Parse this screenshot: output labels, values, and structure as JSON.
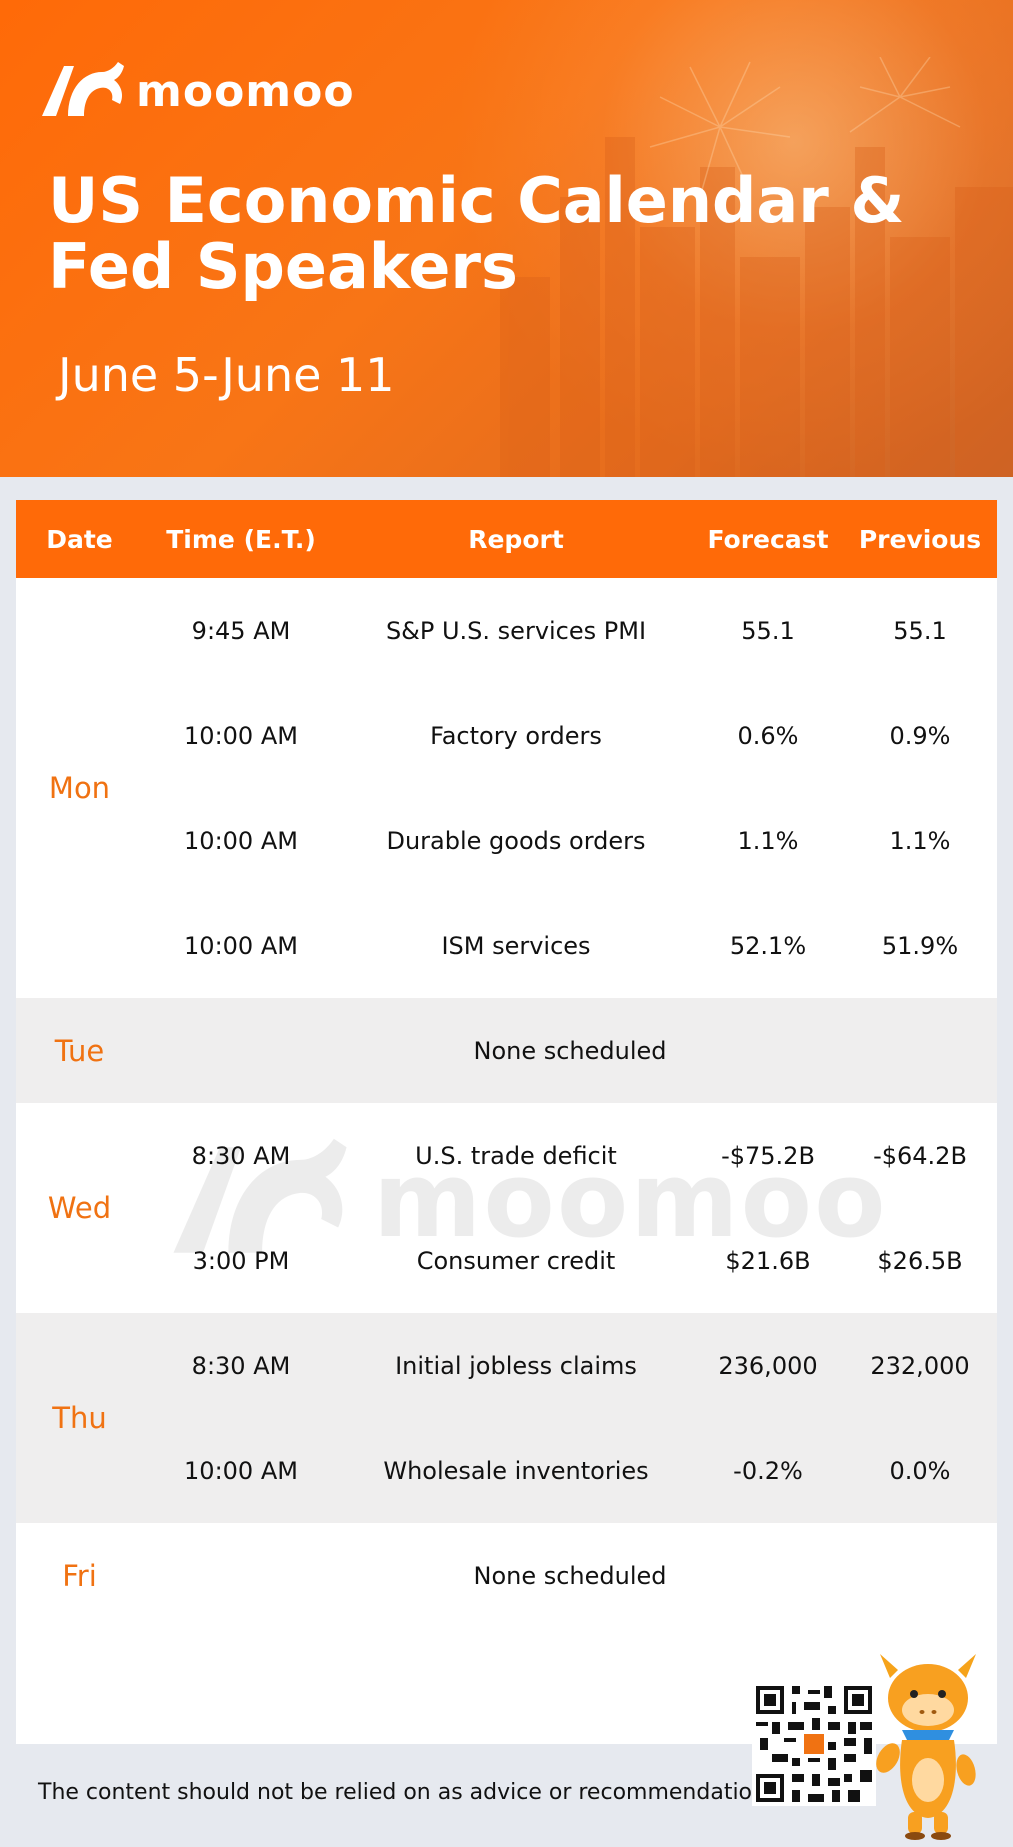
{
  "brand": {
    "name": "moomoo"
  },
  "header": {
    "title": "US Economic Calendar & Fed Speakers",
    "date_range": "June 5-June 11"
  },
  "table": {
    "columns": [
      "Date",
      "Time (E.T.)",
      "Report",
      "Forecast",
      "Previous"
    ],
    "days": [
      {
        "day": "Mon",
        "rows": [
          {
            "time": "9:45 AM",
            "report": "S&P U.S. services PMI",
            "forecast": "55.1",
            "previous": "55.1"
          },
          {
            "time": "10:00 AM",
            "report": "Factory orders",
            "forecast": "0.6%",
            "previous": "0.9%"
          },
          {
            "time": "10:00 AM",
            "report": "Durable goods orders",
            "forecast": "1.1%",
            "previous": "1.1%"
          },
          {
            "time": "10:00 AM",
            "report": "ISM services",
            "forecast": "52.1%",
            "previous": "51.9%"
          }
        ]
      },
      {
        "day": "Tue",
        "none": "None scheduled"
      },
      {
        "day": "Wed",
        "rows": [
          {
            "time": "8:30 AM",
            "report": "U.S. trade deficit",
            "forecast": "-$75.2B",
            "previous": "-$64.2B"
          },
          {
            "time": "3:00 PM",
            "report": "Consumer credit",
            "forecast": "$21.6B",
            "previous": "$26.5B"
          }
        ]
      },
      {
        "day": "Thu",
        "rows": [
          {
            "time": "8:30 AM",
            "report": "Initial jobless claims",
            "forecast": "236,000",
            "previous": "232,000"
          },
          {
            "time": "10:00 AM",
            "report": "Wholesale inventories",
            "forecast": "-0.2%",
            "previous": "0.0%"
          }
        ]
      },
      {
        "day": "Fri",
        "none": "None scheduled"
      }
    ]
  },
  "footer": {
    "disclaimer": "The content should not be relied on as advice or recommendation."
  },
  "colors": {
    "accent": "#ff6a08",
    "day_label": "#f07212",
    "alt_row": "#efeeee",
    "page_bg": "#e6e9ef"
  },
  "icons": [
    "moomoo-logo-icon",
    "qr-code-icon",
    "mascot-icon"
  ]
}
